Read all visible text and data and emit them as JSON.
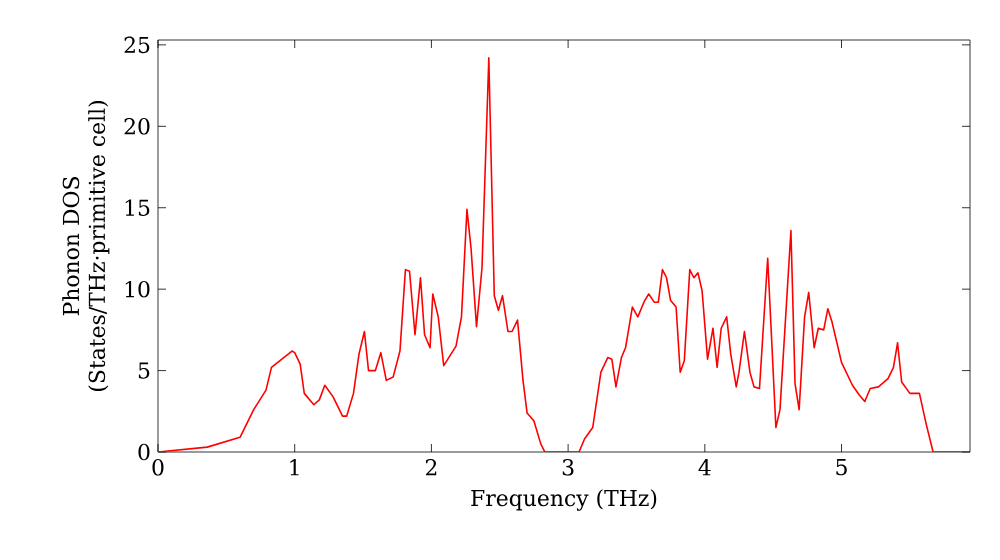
{
  "chart_data": {
    "type": "line",
    "xlabel": "Frequency (THz)",
    "ylabel": "Phonon DOS\n(States/THz·primitive cell)",
    "xlim": [
      0,
      5.94
    ],
    "ylim": [
      0,
      25.3
    ],
    "xticks": [
      0,
      1,
      2,
      3,
      4,
      5
    ],
    "yticks": [
      0,
      5,
      10,
      15,
      20,
      25
    ],
    "grid": false,
    "marker": "none",
    "line_style": "solid",
    "series": [
      {
        "color": "#ff0000",
        "x": [
          0,
          0.36,
          0.6,
          0.7,
          0.79,
          0.83,
          0.98,
          1.0,
          1.04,
          1.07,
          1.14,
          1.18,
          1.22,
          1.28,
          1.35,
          1.38,
          1.43,
          1.47,
          1.51,
          1.54,
          1.59,
          1.63,
          1.67,
          1.72,
          1.77,
          1.81,
          1.84,
          1.88,
          1.92,
          1.95,
          1.99,
          2.01,
          2.05,
          2.09,
          2.18,
          2.22,
          2.26,
          2.29,
          2.33,
          2.37,
          2.42,
          2.46,
          2.49,
          2.52,
          2.56,
          2.59,
          2.63,
          2.67,
          2.7,
          2.75,
          2.8,
          2.83,
          3.08,
          3.12,
          3.18,
          3.24,
          3.29,
          3.32,
          3.35,
          3.39,
          3.42,
          3.47,
          3.51,
          3.56,
          3.59,
          3.63,
          3.66,
          3.69,
          3.72,
          3.75,
          3.79,
          3.82,
          3.85,
          3.89,
          3.92,
          3.95,
          3.98,
          4.02,
          4.06,
          4.09,
          4.12,
          4.16,
          4.19,
          4.23,
          4.25,
          4.29,
          4.33,
          4.36,
          4.4,
          4.46,
          4.52,
          4.55,
          4.63,
          4.66,
          4.69,
          4.73,
          4.76,
          4.8,
          4.83,
          4.87,
          4.9,
          4.93,
          5.0,
          5.08,
          5.13,
          5.17,
          5.21,
          5.27,
          5.34,
          5.38,
          5.41,
          5.44,
          5.5,
          5.57,
          5.62,
          5.67,
          5.92
        ],
        "values": [
          0,
          0.3,
          0.9,
          2.6,
          3.8,
          5.2,
          6.2,
          6.1,
          5.4,
          3.6,
          2.9,
          3.2,
          4.1,
          3.4,
          2.2,
          2.2,
          3.6,
          6.0,
          7.4,
          5.0,
          5.0,
          6.1,
          4.4,
          4.6,
          6.2,
          11.2,
          11.1,
          7.2,
          10.7,
          7.2,
          6.4,
          9.7,
          8.3,
          5.3,
          6.5,
          8.3,
          14.9,
          12.5,
          7.7,
          11.3,
          24.2,
          9.6,
          8.7,
          9.6,
          7.4,
          7.4,
          8.1,
          4.4,
          2.4,
          1.9,
          0.5,
          0,
          0,
          0.8,
          1.5,
          4.9,
          5.8,
          5.7,
          4.0,
          5.8,
          6.4,
          8.9,
          8.3,
          9.3,
          9.7,
          9.2,
          9.2,
          11.2,
          10.7,
          9.3,
          8.9,
          4.9,
          5.6,
          11.2,
          10.7,
          11.0,
          9.9,
          5.7,
          7.6,
          5.2,
          7.6,
          8.3,
          6.0,
          4.0,
          4.9,
          7.4,
          4.9,
          4.0,
          3.9,
          11.9,
          1.5,
          2.6,
          13.6,
          4.2,
          2.6,
          8.3,
          9.8,
          6.4,
          7.6,
          7.5,
          8.8,
          8.0,
          5.5,
          4.1,
          3.5,
          3.1,
          3.9,
          4.0,
          4.5,
          5.2,
          6.7,
          4.3,
          3.6,
          3.6,
          1.7,
          0,
          0
        ]
      }
    ]
  }
}
